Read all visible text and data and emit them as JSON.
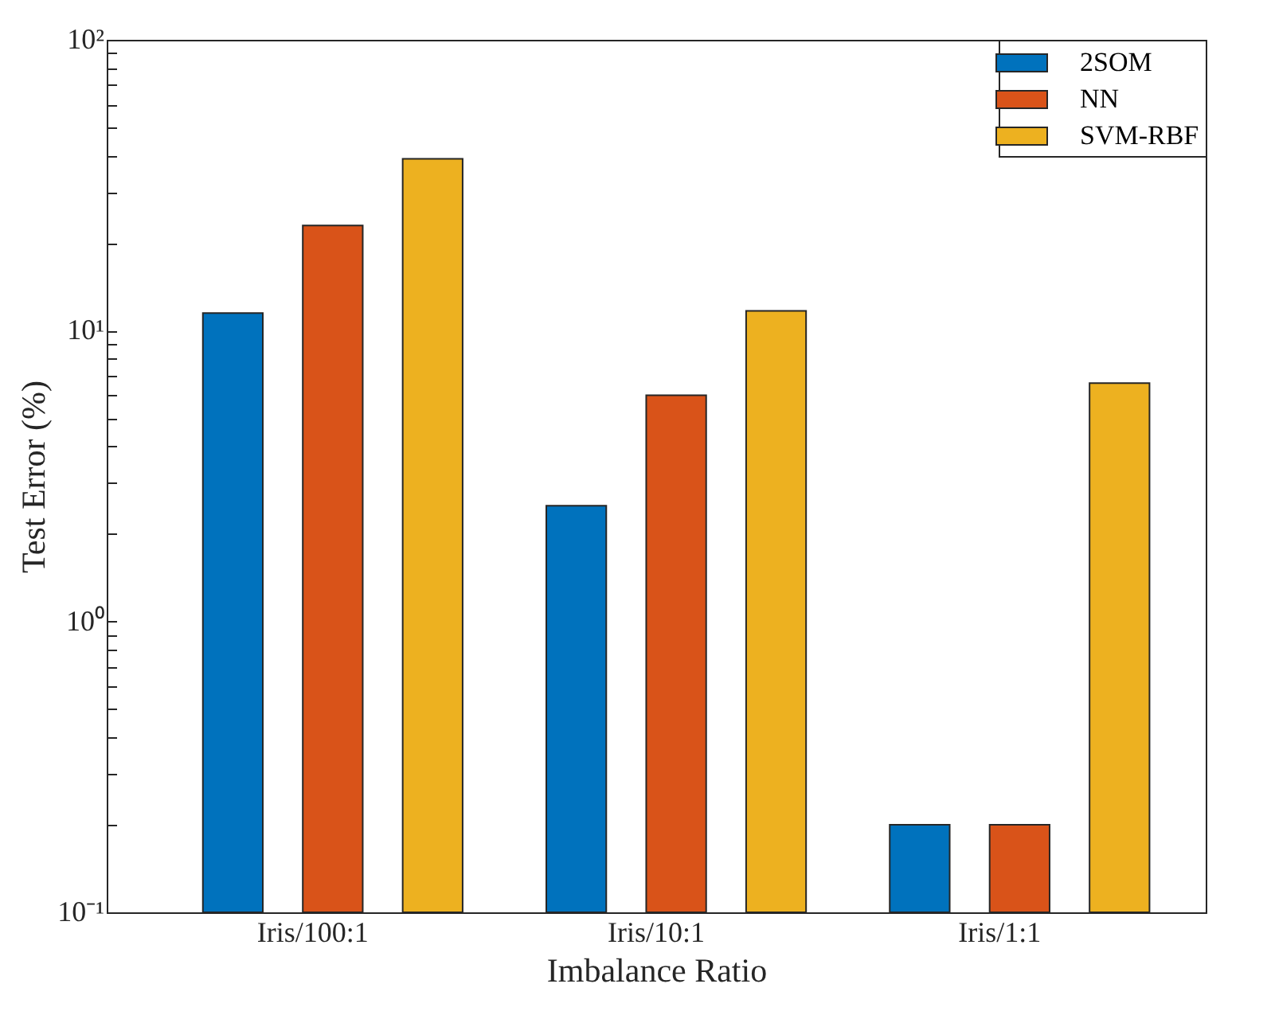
{
  "chart_data": {
    "type": "bar",
    "xlabel": "Imbalance Ratio",
    "ylabel": "Test Error (%)",
    "categories": [
      "Iris/100:1",
      "Iris/10:1",
      "Iris/1:1"
    ],
    "series": [
      {
        "name": "2SOM",
        "color": "#0072bd",
        "values": [
          11.5,
          2.5,
          0.2
        ]
      },
      {
        "name": "NN",
        "color": "#d95319",
        "values": [
          23,
          6,
          0.2
        ]
      },
      {
        "name": "SVM-RBF",
        "color": "#edb120",
        "values": [
          39,
          11.7,
          6.6
        ]
      }
    ],
    "log": "y",
    "ylim": [
      0.1,
      100
    ],
    "yticks": [
      {
        "value": 0.1,
        "label": "10⁻¹"
      },
      {
        "value": 0.2,
        "label": null
      },
      {
        "value": 0.3,
        "label": null
      },
      {
        "value": 0.4,
        "label": null
      },
      {
        "value": 0.5,
        "label": null
      },
      {
        "value": 0.6,
        "label": null
      },
      {
        "value": 0.7,
        "label": null
      },
      {
        "value": 0.8,
        "label": null
      },
      {
        "value": 0.9,
        "label": null
      },
      {
        "value": 1,
        "label": "10⁰"
      },
      {
        "value": 2,
        "label": null
      },
      {
        "value": 3,
        "label": null
      },
      {
        "value": 4,
        "label": null
      },
      {
        "value": 5,
        "label": null
      },
      {
        "value": 6,
        "label": null
      },
      {
        "value": 7,
        "label": null
      },
      {
        "value": 8,
        "label": null
      },
      {
        "value": 9,
        "label": null
      },
      {
        "value": 10,
        "label": "10¹"
      },
      {
        "value": 20,
        "label": null
      },
      {
        "value": 30,
        "label": null
      },
      {
        "value": 40,
        "label": null
      },
      {
        "value": 50,
        "label": null
      },
      {
        "value": 60,
        "label": null
      },
      {
        "value": 70,
        "label": null
      },
      {
        "value": 80,
        "label": null
      },
      {
        "value": 90,
        "label": null
      },
      {
        "value": 100,
        "label": "10²"
      }
    ],
    "grid": false,
    "legend": "top right"
  }
}
